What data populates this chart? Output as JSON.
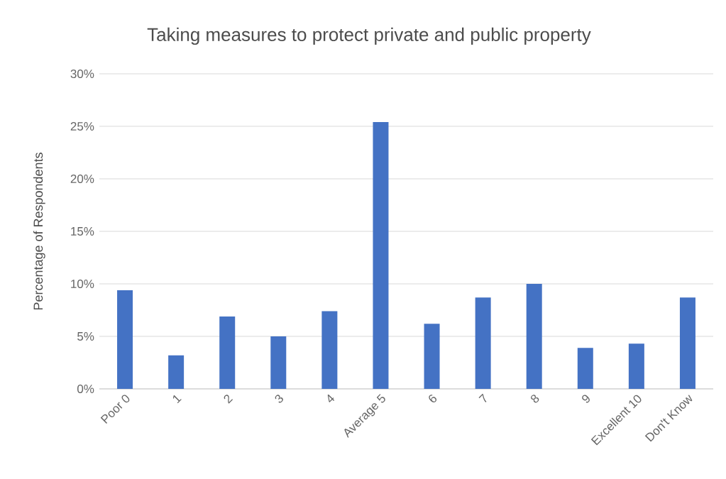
{
  "chart_data": {
    "type": "bar",
    "title": "Taking measures to protect private and public property",
    "ylabel": "Percentage of Respondents",
    "categories": [
      "Poor 0",
      "1",
      "2",
      "3",
      "4",
      "Average 5",
      "6",
      "7",
      "8",
      "9",
      "Excellent 10",
      "Don't Know"
    ],
    "values": [
      9.4,
      3.2,
      6.9,
      5.0,
      7.4,
      25.4,
      6.2,
      8.7,
      10.0,
      3.9,
      4.3,
      8.7
    ],
    "color": "#4472c4",
    "ylim": [
      0,
      30
    ],
    "yticks": [
      {
        "value": 0,
        "label": "0%"
      },
      {
        "value": 5,
        "label": "5%"
      },
      {
        "value": 10,
        "label": "10%"
      },
      {
        "value": 15,
        "label": "15%"
      },
      {
        "value": 20,
        "label": "20%"
      },
      {
        "value": 25,
        "label": "25%"
      },
      {
        "value": 30,
        "label": "30%"
      }
    ],
    "grid": "y"
  }
}
